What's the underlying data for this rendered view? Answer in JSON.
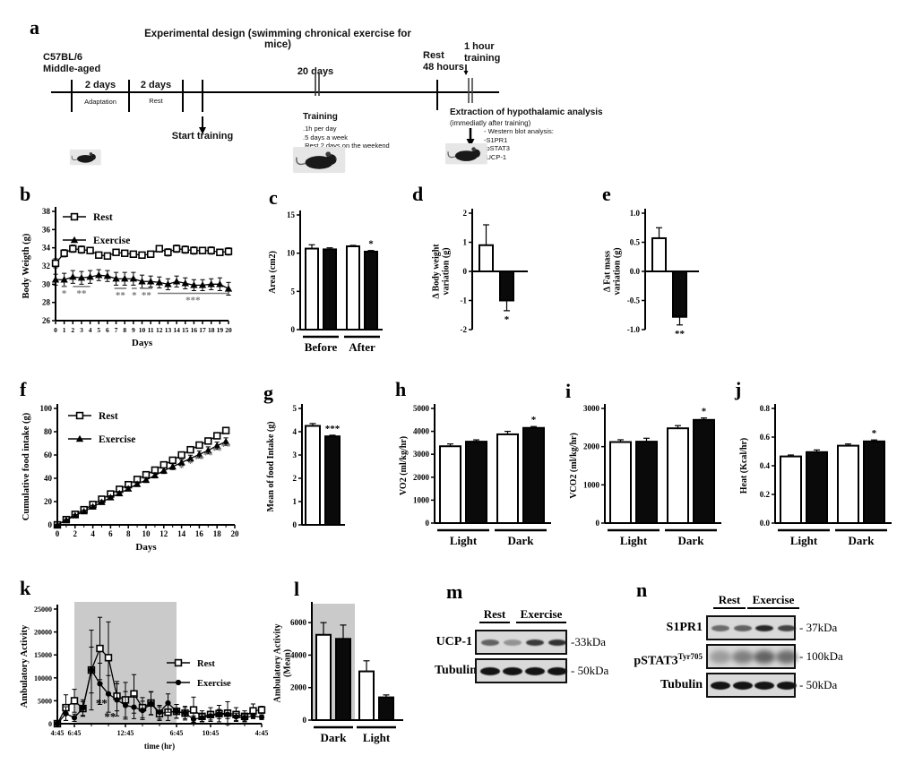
{
  "labels": {
    "a": "a",
    "b": "b",
    "c": "c",
    "d": "d",
    "e": "e",
    "f": "f",
    "g": "g",
    "h": "h",
    "i": "i",
    "j": "j",
    "k": "k",
    "l": "l",
    "m": "m",
    "n": "n"
  },
  "panel_a": {
    "title": "Experimental design (swimming chronical exercise for mice)",
    "strain": "C57BL/6\nMiddle-aged",
    "seg1_top": "2 days",
    "seg1_bottom": "Adaptation",
    "seg2_top": "2 days",
    "seg2_bottom": "Rest",
    "start_training": "Start training",
    "twenty_days": "20 days",
    "training_title": "Training",
    "training_lines": ".1h per day\n.5 days a week\n.Rest 2 days on the weekend",
    "rest_48": "Rest\n48 hours",
    "one_hour": "1 hour\ntraining",
    "extraction_title": "Extraction of hypothalamic analysis",
    "extraction_sub": "(immediatly after training)",
    "wb_lines": "- Western blot analysis:\n-S1PR1\n-pSTAT3\n-UCP-1"
  },
  "chart_data": [
    {
      "id": "b",
      "type": "line",
      "xlabel": "Days",
      "ylabel": "Body Weigth (g)",
      "xlim": [
        0,
        20
      ],
      "ylim": [
        26,
        38
      ],
      "yticks": [
        26,
        28,
        30,
        32,
        34,
        36,
        38
      ],
      "xticks": [
        0,
        1,
        2,
        3,
        4,
        5,
        6,
        7,
        8,
        9,
        10,
        11,
        12,
        13,
        14,
        15,
        16,
        17,
        18,
        19,
        20
      ],
      "x": [
        0,
        1,
        2,
        3,
        4,
        5,
        6,
        7,
        8,
        9,
        10,
        11,
        12,
        13,
        14,
        15,
        16,
        17,
        18,
        19,
        20
      ],
      "series": [
        {
          "name": "Rest",
          "marker": "open-square",
          "values": [
            32.3,
            33.4,
            33.9,
            33.8,
            33.7,
            33.2,
            33.1,
            33.5,
            33.4,
            33.3,
            33.2,
            33.3,
            33.9,
            33.5,
            33.9,
            33.8,
            33.7,
            33.7,
            33.7,
            33.5,
            33.6
          ],
          "err": [
            0.5,
            0.4,
            0.4,
            0.4,
            0.35,
            0.3,
            0.3,
            0.3,
            0.3,
            0.3,
            0.3,
            0.3,
            0.35,
            0.4,
            0.4,
            0.4,
            0.4,
            0.35,
            0.4,
            0.35,
            0.4
          ]
        },
        {
          "name": "Exercise",
          "marker": "filled-triangle",
          "values": [
            30.5,
            30.5,
            30.8,
            30.7,
            30.8,
            31.0,
            30.9,
            30.6,
            30.6,
            30.6,
            30.3,
            30.3,
            30.2,
            30.0,
            30.3,
            30.1,
            29.9,
            29.9,
            30.0,
            30.0,
            29.5
          ],
          "err": [
            0.6,
            0.7,
            0.7,
            0.7,
            0.7,
            0.6,
            0.6,
            0.7,
            0.7,
            0.7,
            0.7,
            0.6,
            0.6,
            0.6,
            0.6,
            0.6,
            0.6,
            0.6,
            0.6,
            0.7,
            0.7
          ]
        }
      ],
      "sig_color": "#7a7a7a",
      "sig": [
        {
          "x1": 0.7,
          "x2": 1.3,
          "y": 29.75,
          "label": "*"
        },
        {
          "x1": 2.0,
          "x2": 4.0,
          "y": 29.75,
          "label": "**"
        },
        {
          "x1": 6.8,
          "x2": 8.2,
          "y": 29.55,
          "label": "**"
        },
        {
          "x1": 8.8,
          "x2": 9.4,
          "y": 29.55,
          "label": "*"
        },
        {
          "x1": 9.8,
          "x2": 11.2,
          "y": 29.55,
          "label": "**"
        },
        {
          "x1": 11.8,
          "x2": 20.0,
          "y": 29.0,
          "label": "***"
        }
      ]
    },
    {
      "id": "f",
      "type": "line",
      "xlabel": "Days",
      "ylabel": "Cumulative food intake (g)",
      "xlim": [
        0,
        20
      ],
      "ylim": [
        0,
        100
      ],
      "yticks": [
        0,
        20,
        40,
        60,
        80,
        100
      ],
      "xticks": [
        0,
        2,
        4,
        6,
        8,
        10,
        12,
        14,
        16,
        18,
        20
      ],
      "minorx": 1,
      "x": [
        0,
        1,
        2,
        3,
        4,
        5,
        6,
        7,
        8,
        9,
        10,
        11,
        12,
        13,
        14,
        15,
        16,
        17,
        18,
        19
      ],
      "series": [
        {
          "name": "Rest",
          "marker": "open-square",
          "values": [
            0,
            4.5,
            9,
            13,
            17.5,
            22,
            26.5,
            30.5,
            34.5,
            39,
            43,
            47,
            51.5,
            55.5,
            60,
            64.5,
            68.5,
            72,
            76.5,
            81
          ],
          "err": [
            0.3,
            0.5,
            0.7,
            0.8,
            1.0,
            1.1,
            1.2,
            1.3,
            1.4,
            1.5,
            1.6,
            1.7,
            1.8,
            1.9,
            2.0,
            2.1,
            2.2,
            2.3,
            2.4,
            2.5
          ]
        },
        {
          "name": "Exercise",
          "marker": "filled-triangle",
          "values": [
            0,
            4,
            8,
            11.5,
            15.5,
            19.5,
            23.5,
            27,
            31,
            35,
            38.5,
            42.5,
            46.5,
            50,
            53.5,
            57,
            60.5,
            64,
            68,
            71.5
          ],
          "err": [
            0.3,
            0.5,
            0.8,
            1.0,
            1.2,
            1.4,
            1.5,
            1.7,
            1.8,
            2.0,
            2.1,
            2.2,
            2.4,
            2.5,
            2.6,
            2.8,
            2.9,
            3.0,
            3.1,
            3.2
          ]
        }
      ],
      "sig_color": "#7a7a7a",
      "sig": [
        {
          "x": 14,
          "y": 46,
          "label": "*"
        },
        {
          "x": 15,
          "y": 50,
          "label": "*"
        },
        {
          "x": 16,
          "y": 54,
          "label": "**"
        },
        {
          "x": 17,
          "y": 57.5,
          "label": "**"
        },
        {
          "x": 18,
          "y": 61,
          "label": "**"
        },
        {
          "x": 19,
          "y": 64.5,
          "label": "**"
        }
      ]
    },
    {
      "id": "k",
      "type": "line",
      "xlabel": "time (hr)",
      "ylabel": "Ambulatory Activity",
      "xlim": [
        0,
        24
      ],
      "ylim": [
        0,
        25000
      ],
      "yticks": [
        0,
        5000,
        10000,
        15000,
        20000,
        25000
      ],
      "xticks": [
        {
          "v": 0,
          "label": "4:45"
        },
        {
          "v": 2,
          "label": "6:45"
        },
        {
          "v": 8,
          "label": "12:45"
        },
        {
          "v": 14,
          "label": "6:45"
        },
        {
          "v": 18,
          "label": "10:45"
        },
        {
          "v": 24,
          "label": "4:45"
        }
      ],
      "minorx": 2,
      "band": [
        2,
        14
      ],
      "x": [
        0,
        1,
        2,
        3,
        4,
        5,
        6,
        7,
        8,
        9,
        10,
        11,
        12,
        13,
        14,
        15,
        16,
        17,
        18,
        19,
        20,
        21,
        22,
        23,
        24
      ],
      "series": [
        {
          "name": "Rest",
          "marker": "open-square",
          "values": [
            0,
            3500,
            5000,
            3300,
            11700,
            16400,
            14400,
            6000,
            5200,
            6500,
            3500,
            4500,
            2200,
            2500,
            2700,
            2300,
            3000,
            1600,
            2000,
            2200,
            2300,
            2000,
            1600,
            2800,
            3000
          ],
          "err": [
            0,
            2800,
            2500,
            1500,
            8700,
            6800,
            7800,
            3200,
            3800,
            4200,
            2200,
            2500,
            1500,
            1800,
            1500,
            1500,
            2800,
            1200,
            1500,
            1800,
            2500,
            1500,
            1200,
            1500,
            800
          ]
        },
        {
          "name": "Exercise",
          "marker": "filled-circle",
          "values": [
            0,
            2200,
            1300,
            3400,
            11700,
            8700,
            6500,
            5200,
            4000,
            3600,
            2900,
            4400,
            2500,
            4500,
            2700,
            2300,
            1000,
            1300,
            1700,
            2100,
            2000,
            1500,
            1300,
            1700,
            1400
          ],
          "err": [
            0,
            1500,
            800,
            1800,
            5000,
            4500,
            4000,
            3500,
            3000,
            2500,
            2000,
            2500,
            1500,
            2000,
            1500,
            1200,
            700,
            800,
            900,
            1000,
            900,
            800,
            700,
            600,
            500
          ]
        }
      ],
      "sig": [
        {
          "x": 5.2,
          "y": 3600,
          "label": "**"
        },
        {
          "x": 6.2,
          "y": 700,
          "label": "**"
        }
      ]
    },
    {
      "id": "c",
      "type": "bar",
      "ylabel": "Area (cm2)",
      "ylim": [
        0,
        15
      ],
      "yticks": [
        0,
        5,
        10,
        15
      ],
      "ydec": 0,
      "groups": [
        {
          "label": "Before",
          "bars": [
            {
              "fill": "white",
              "value": 10.6,
              "err": 0.5
            },
            {
              "fill": "black",
              "value": 10.5,
              "err": 0.2
            }
          ]
        },
        {
          "label": "After",
          "bars": [
            {
              "fill": "white",
              "value": 10.9,
              "err": 0.12
            },
            {
              "fill": "black",
              "value": 10.2,
              "err": 0.15,
              "sig": "*"
            }
          ]
        }
      ]
    },
    {
      "id": "d",
      "type": "bar",
      "ylabel": "Δ Body weight\nvariation (g)",
      "ylim": [
        -2,
        2
      ],
      "yticks": [
        -2,
        -1,
        0,
        1,
        2
      ],
      "ydec": 0,
      "groups": [
        {
          "label": "",
          "bars": [
            {
              "fill": "white",
              "value": 0.9,
              "err": 0.7
            },
            {
              "fill": "black",
              "value": -1.0,
              "err": 0.35,
              "sig": "*"
            }
          ]
        }
      ]
    },
    {
      "id": "e",
      "type": "bar",
      "ylabel": "Δ Fat mass\nvariation (g)",
      "ylim": [
        -1,
        1
      ],
      "yticks": [
        -1,
        -0.5,
        0,
        0.5,
        1
      ],
      "ydec": 1,
      "groups": [
        {
          "label": "",
          "bars": [
            {
              "fill": "white",
              "value": 0.57,
              "err": 0.18
            },
            {
              "fill": "black",
              "value": -0.78,
              "err": 0.14,
              "sig": "**"
            }
          ]
        }
      ]
    },
    {
      "id": "g",
      "type": "bar",
      "ylabel": "Mean  of food Intake (g)",
      "ylim": [
        0,
        5
      ],
      "yticks": [
        0,
        1,
        2,
        3,
        4,
        5
      ],
      "ydec": 0,
      "groups": [
        {
          "label": "",
          "bars": [
            {
              "fill": "white",
              "value": 4.25,
              "err": 0.1
            },
            {
              "fill": "black",
              "value": 3.8,
              "err": 0.05,
              "sig": "***"
            }
          ]
        }
      ]
    },
    {
      "id": "h",
      "type": "bar",
      "ylabel": "VO2 (ml/kg/hr)",
      "ylim": [
        0,
        5000
      ],
      "yticks": [
        0,
        1000,
        2000,
        3000,
        4000,
        5000
      ],
      "ydec": 0,
      "groups": [
        {
          "label": "Light",
          "bars": [
            {
              "fill": "white",
              "value": 3350,
              "err": 100
            },
            {
              "fill": "black",
              "value": 3550,
              "err": 80
            }
          ]
        },
        {
          "label": "Dark",
          "bars": [
            {
              "fill": "white",
              "value": 3870,
              "err": 130
            },
            {
              "fill": "black",
              "value": 4150,
              "err": 60,
              "sig": "*"
            }
          ]
        }
      ]
    },
    {
      "id": "i",
      "type": "bar",
      "ylabel": "VCO2 (ml/kg/hr)",
      "ylim": [
        0,
        3000
      ],
      "yticks": [
        0,
        1000,
        2000,
        3000
      ],
      "ydec": 0,
      "groups": [
        {
          "label": "Light",
          "bars": [
            {
              "fill": "white",
              "value": 2120,
              "err": 60
            },
            {
              "fill": "black",
              "value": 2130,
              "err": 90
            }
          ]
        },
        {
          "label": "Dark",
          "bars": [
            {
              "fill": "white",
              "value": 2480,
              "err": 70
            },
            {
              "fill": "black",
              "value": 2700,
              "err": 50,
              "sig": "*"
            }
          ]
        }
      ]
    },
    {
      "id": "j",
      "type": "bar",
      "ylabel": "Heat (Kcal/hr)",
      "ylim": [
        0,
        0.8
      ],
      "yticks": [
        0,
        0.2,
        0.4,
        0.6,
        0.8
      ],
      "ydec": 1,
      "groups": [
        {
          "label": "Light",
          "bars": [
            {
              "fill": "white",
              "value": 0.465,
              "err": 0.01
            },
            {
              "fill": "black",
              "value": 0.495,
              "err": 0.015
            }
          ]
        },
        {
          "label": "Dark",
          "bars": [
            {
              "fill": "white",
              "value": 0.54,
              "err": 0.012
            },
            {
              "fill": "black",
              "value": 0.57,
              "err": 0.01,
              "sig": "*"
            }
          ]
        }
      ]
    },
    {
      "id": "l",
      "type": "bar",
      "ylabel": "Ambulatory Activity\n(Mean)",
      "ylim": [
        0,
        7000
      ],
      "yticks": [
        0,
        2000,
        4000,
        6000
      ],
      "ydec": 0,
      "band_group": 0,
      "groups": [
        {
          "label": "Dark",
          "bars": [
            {
              "fill": "white",
              "value": 5250,
              "err": 750
            },
            {
              "fill": "black",
              "value": 5000,
              "err": 850
            }
          ]
        },
        {
          "label": "Light",
          "bars": [
            {
              "fill": "white",
              "value": 3000,
              "err": 650
            },
            {
              "fill": "black",
              "value": 1400,
              "err": 150
            }
          ]
        }
      ]
    }
  ],
  "blots": {
    "m": {
      "headers": [
        "Rest",
        "Exercise"
      ],
      "rows": [
        {
          "label": "UCP-1",
          "mw": "-33kDa",
          "style": "sharp",
          "bands": [
            0.6,
            0.35,
            0.8,
            0.85
          ]
        },
        {
          "label": "Tubulin",
          "mw": "- 50kDa",
          "style": "thick",
          "bands": [
            1,
            1,
            1,
            1
          ]
        }
      ]
    },
    "n": {
      "headers": [
        "Rest",
        "Exercise"
      ],
      "rows": [
        {
          "label": "S1PR1",
          "mw": "- 37kDa",
          "style": "sharp",
          "bands": [
            0.55,
            0.6,
            0.9,
            0.75
          ]
        },
        {
          "label": "pSTAT3",
          "sup": "Tyr705",
          "mw": "- 100kDa",
          "style": "fuzzy",
          "bands": [
            0.3,
            0.45,
            0.6,
            0.55
          ]
        },
        {
          "label": "Tubulin",
          "mw": "- 50kDa",
          "style": "thick",
          "bands": [
            1,
            1,
            1,
            1
          ]
        }
      ]
    }
  }
}
